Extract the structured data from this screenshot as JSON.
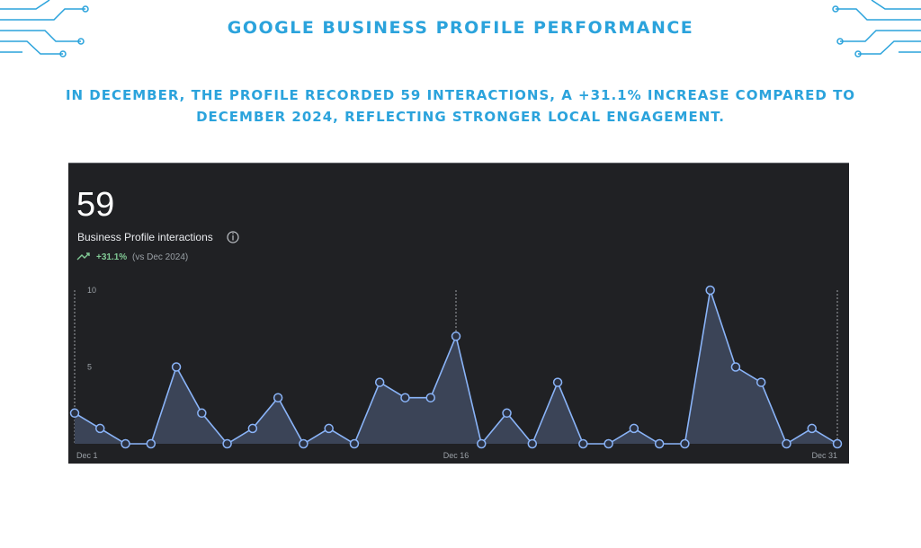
{
  "title": "GOOGLE BUSINESS PROFILE PERFORMANCE",
  "subtitle": "IN DECEMBER, THE PROFILE RECORDED 59 INTERACTIONS, A +31.1% INCREASE COMPARED TO DECEMBER 2024, REFLECTING STRONGER LOCAL ENGAGEMENT.",
  "chart_data": {
    "type": "area",
    "total": 59,
    "metric": "Business Profile interactions",
    "change": "+31.1%",
    "comparison": "(vs Dec 2024)",
    "categories": [
      "Dec 1",
      null,
      null,
      null,
      null,
      null,
      null,
      null,
      null,
      null,
      null,
      null,
      null,
      null,
      null,
      "Dec 16",
      null,
      null,
      null,
      null,
      null,
      null,
      null,
      null,
      null,
      null,
      null,
      null,
      null,
      null,
      "Dec 31"
    ],
    "values": [
      2,
      1,
      0,
      0,
      5,
      2,
      0,
      1,
      3,
      0,
      1,
      0,
      4,
      3,
      3,
      7,
      0,
      2,
      0,
      4,
      0,
      0,
      1,
      0,
      0,
      10,
      5,
      4,
      0,
      1,
      0
    ],
    "color": "#8ab4f8",
    "ylim": [
      0,
      10
    ],
    "yticks": [
      5,
      10
    ],
    "grid": false
  }
}
